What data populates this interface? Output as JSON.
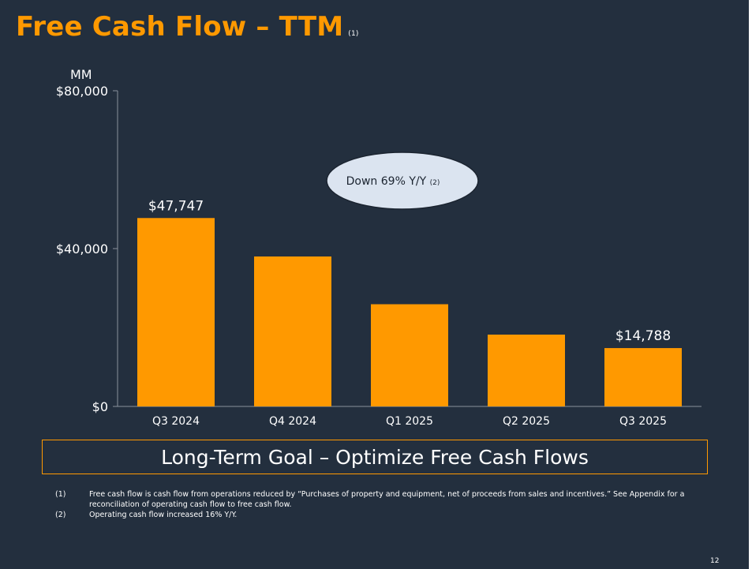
{
  "slide": {
    "title": "Free Cash Flow – TTM",
    "title_footnote_ref": "(1)",
    "goal": "Long-Term Goal – Optimize Free Cash Flows",
    "footnotes": [
      {
        "num": "(1)",
        "text": "Free cash flow is cash flow from operations reduced by “Purchases of property and equipment, net of proceeds from sales and incentives.” See Appendix for a reconciliation of operating cash flow to free cash flow."
      },
      {
        "num": "(2)",
        "text": "Operating cash flow increased 16% Y/Y."
      }
    ],
    "page_number": "12"
  },
  "colors": {
    "background": "#232f3e",
    "accent": "#ff9900",
    "bar": "#ff9900",
    "text": "#ffffff",
    "callout_fill": "#dbe4f0"
  },
  "chart_data": {
    "type": "bar",
    "ylabel": "MM",
    "categories": [
      "Q3 2024",
      "Q4 2024",
      "Q1 2025",
      "Q2 2025",
      "Q3 2025"
    ],
    "values": [
      47747,
      38000,
      25900,
      18200,
      14788
    ],
    "data_labels": [
      "$47,747",
      "",
      "",
      "",
      "$14,788"
    ],
    "ylim": [
      0,
      80000
    ],
    "yticks": [
      0,
      40000,
      80000
    ],
    "ytick_labels": [
      "$0",
      "$40,000",
      "$80,000"
    ],
    "grid": false,
    "annotation": {
      "text": "Down 69% Y/Y",
      "ref": "(2)"
    }
  }
}
